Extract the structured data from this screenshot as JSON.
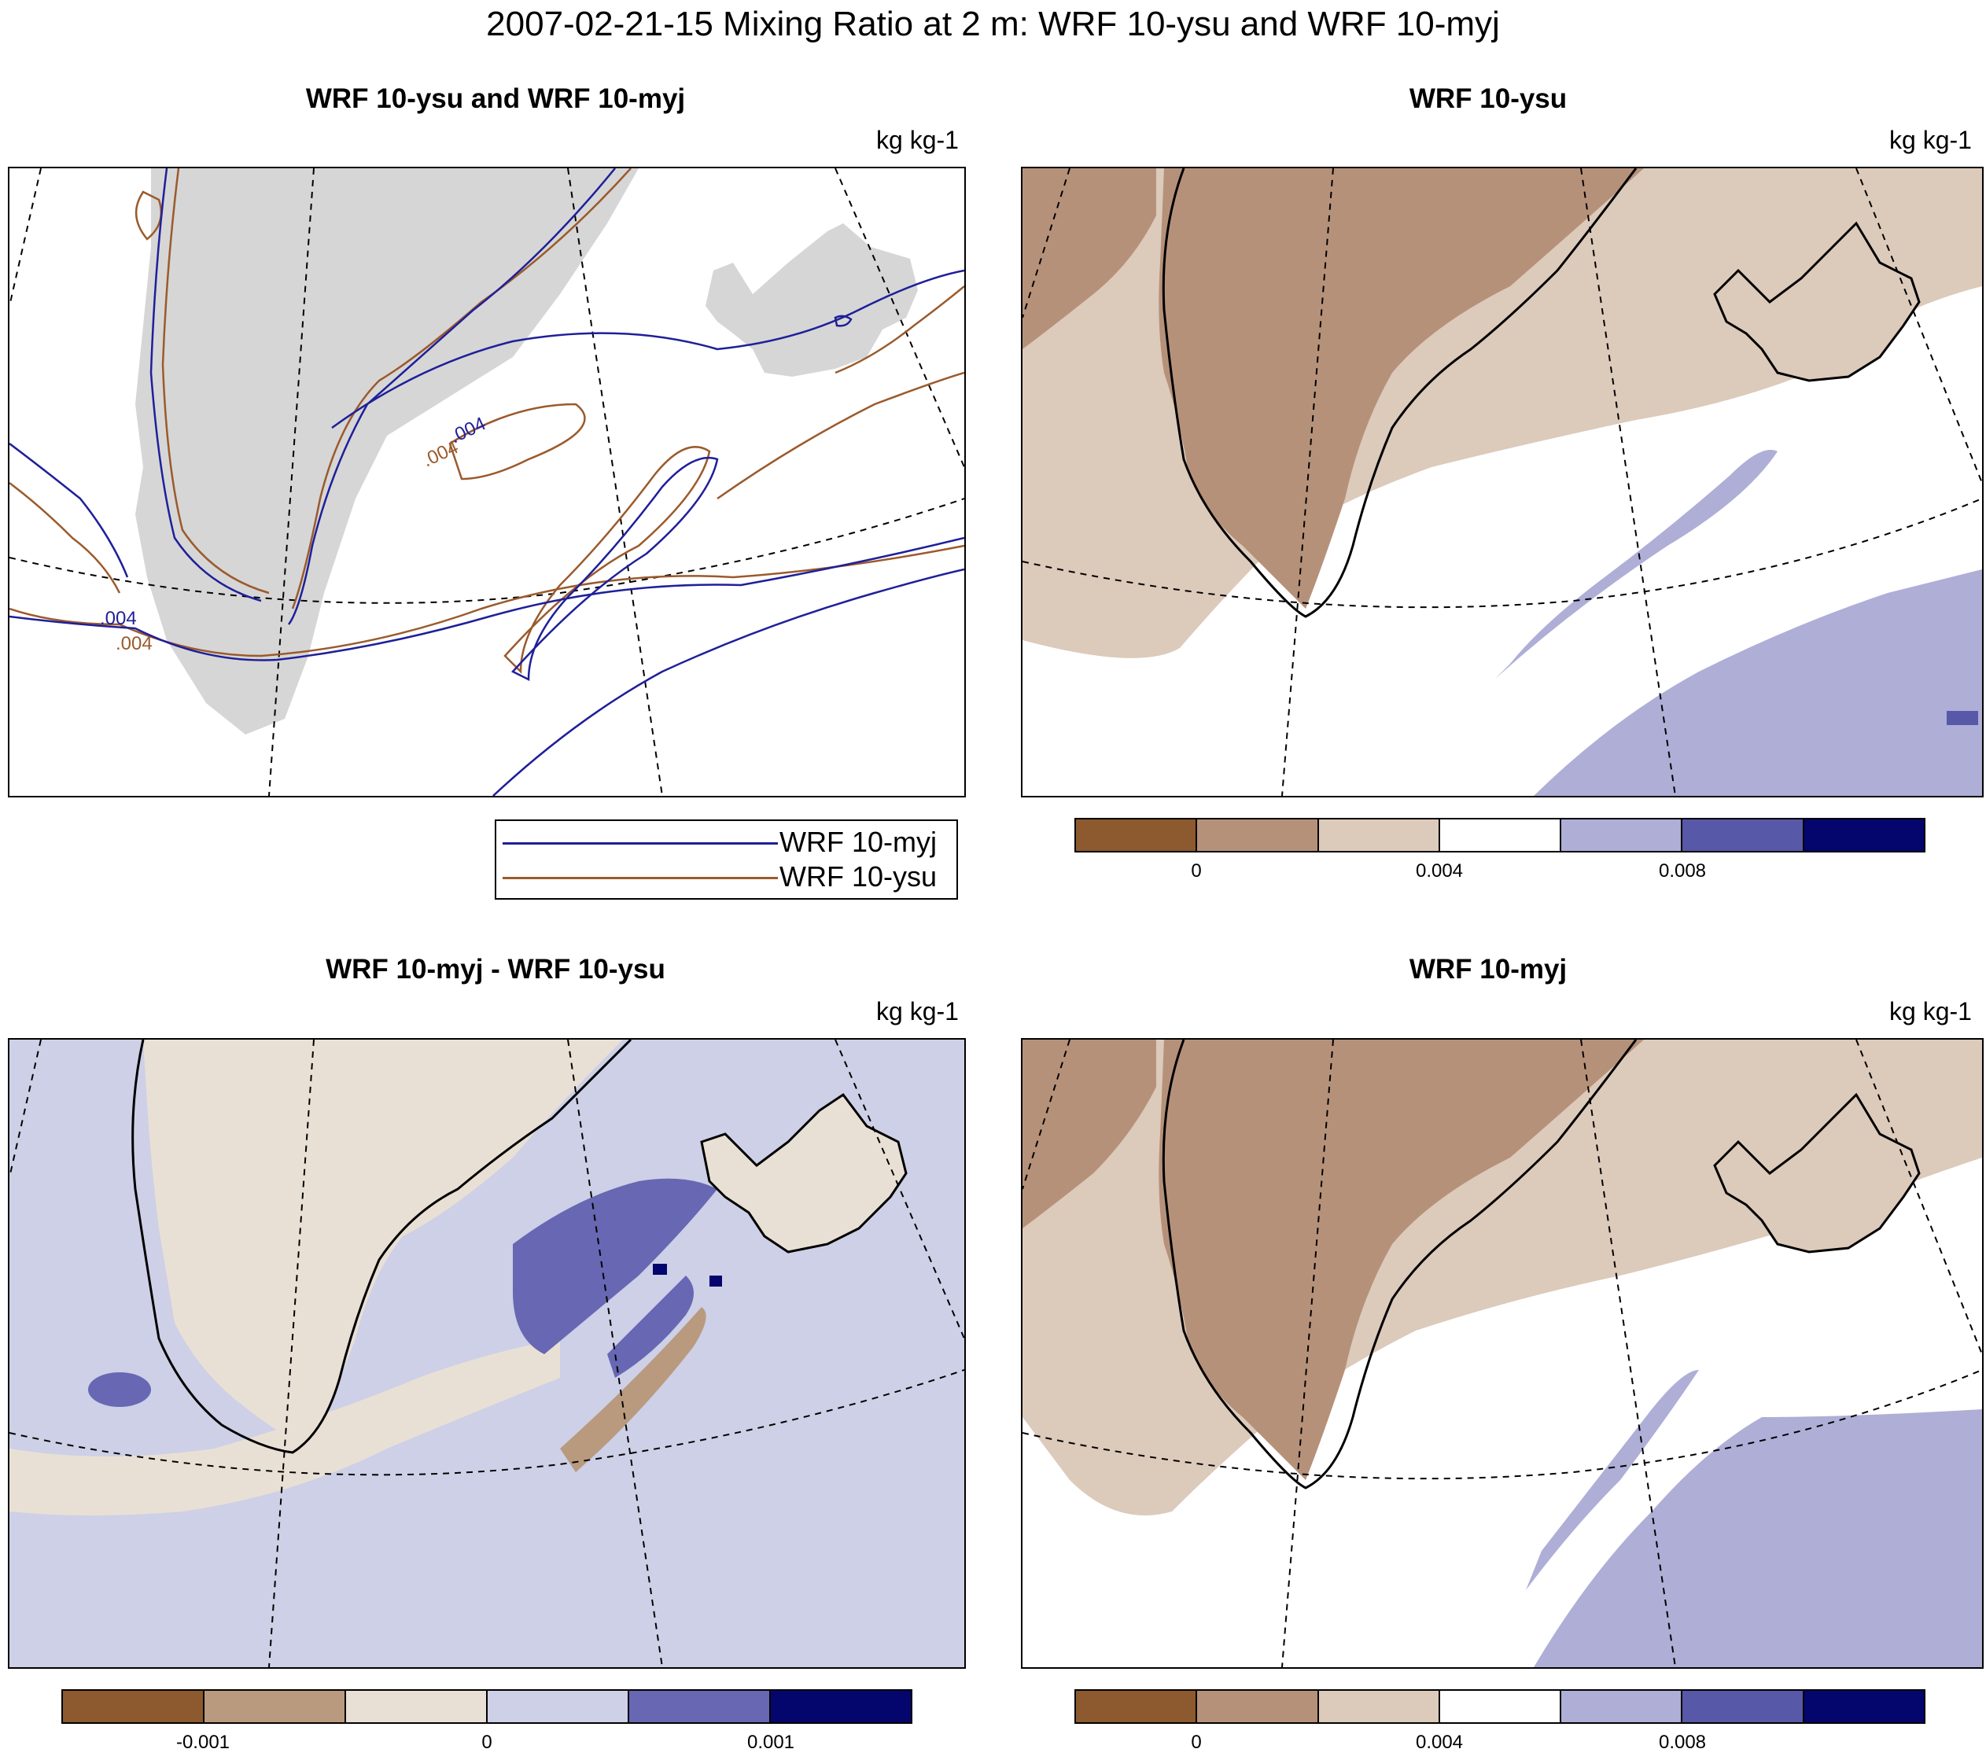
{
  "figure": {
    "title": "2007-02-21-15 Mixing Ratio at 2 m: WRF 10-ysu and WRF 10-myj"
  },
  "colors": {
    "myj_line": "#1f1f9a",
    "ysu_line": "#9b5a2c",
    "land_gray": "#d6d6d6"
  },
  "panels": [
    {
      "title": "WRF 10-ysu and WRF 10-myj",
      "units": "kg kg-1",
      "contour_labels": [
        ".004",
        ".004",
        ".004",
        ".004"
      ]
    },
    {
      "title": "WRF 10-ysu",
      "units": "kg kg-1"
    },
    {
      "title": "WRF 10-myj - WRF 10-ysu",
      "units": "kg kg-1"
    },
    {
      "title": "WRF 10-myj",
      "units": "kg kg-1"
    }
  ],
  "legend": {
    "items": [
      {
        "label": "WRF 10-myj",
        "color": "#1f1f9a"
      },
      {
        "label": "WRF 10-ysu",
        "color": "#9b5a2c"
      }
    ]
  },
  "colorbars": {
    "mixing_ratio": {
      "colors": [
        "#8c5a2e",
        "#b6917a",
        "#dccabb",
        "#ffffff",
        "#aeaed7",
        "#5858a8",
        "#05056e"
      ],
      "labels": [
        "0",
        "0.004",
        "0.008"
      ]
    },
    "difference": {
      "colors": [
        "#8c5a2e",
        "#b99a7f",
        "#e9e0d5",
        "#cdd0e6",
        "#6767b3",
        "#05056e"
      ],
      "labels": [
        "-0.001",
        "0",
        "0.001"
      ]
    }
  }
}
